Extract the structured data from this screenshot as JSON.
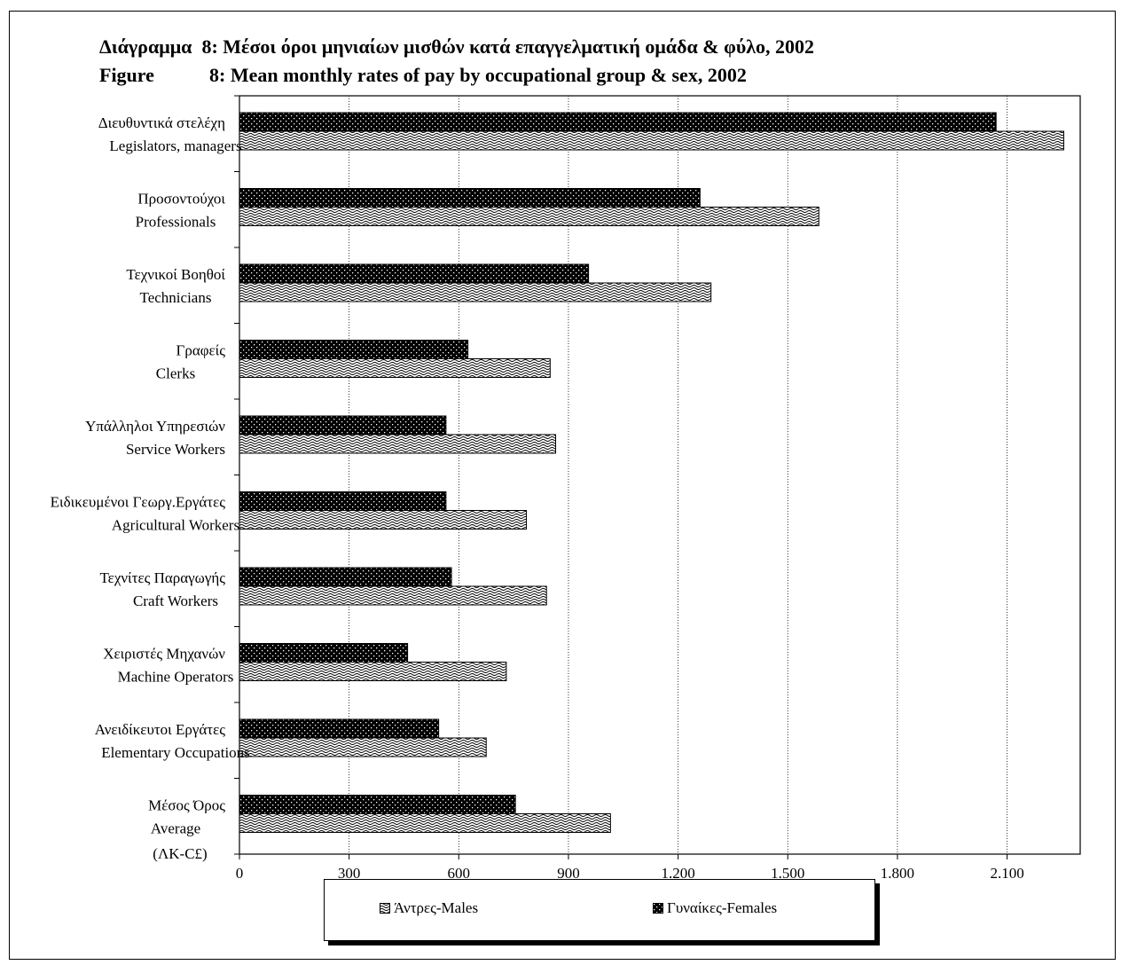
{
  "title_greek": "Διάγραμμα  8: Μέσοι όροι μηνιαίων μισθών κατά επαγγελματική ομάδα & φύλο, 2002",
  "title_english_label": "Figure",
  "title_english": "8: Mean monthly rates of pay by occupational group & sex, 2002",
  "legend": {
    "males": "Άντρες-Males",
    "females": "Γυναίκες-Females"
  },
  "chart_data": {
    "type": "bar",
    "orientation": "horizontal",
    "categories": [
      {
        "greek": "Διευθυντικά στελέχη",
        "english": "Legislators, managers"
      },
      {
        "greek": "Προσοντούχοι",
        "english": "Professionals"
      },
      {
        "greek": "Τεχνικοί Βοηθοί",
        "english": "Technicians"
      },
      {
        "greek": "Γραφείς",
        "english": "Clerks"
      },
      {
        "greek": "Υπάλληλοι Υπηρεσιών",
        "english": "Service Workers"
      },
      {
        "greek": "Ειδικευμένοι Γεωργ.Εργάτες",
        "english": "Agricultural Workers"
      },
      {
        "greek": "Τεχνίτες Παραγωγής",
        "english": "Craft Workers"
      },
      {
        "greek": "Χειριστές Μηχανών",
        "english": "Machine Operators"
      },
      {
        "greek": "Ανειδίκευτοι Εργάτες",
        "english": "Elementary Occupations"
      },
      {
        "greek": "Μέσος Όρος",
        "english": "Average"
      }
    ],
    "series": [
      {
        "name": "Γυναίκες-Females",
        "values": [
          2070,
          1260,
          955,
          625,
          565,
          565,
          580,
          460,
          545,
          755
        ]
      },
      {
        "name": "Άντρες-Males",
        "values": [
          2255,
          1585,
          1290,
          850,
          865,
          785,
          840,
          730,
          675,
          1015
        ]
      }
    ],
    "unit_label": "(ΛΚ-C£)",
    "xlim": [
      0,
      2300
    ],
    "xticks": [
      0,
      300,
      600,
      900,
      1200,
      1500,
      1800,
      2100
    ],
    "xtick_labels": [
      "0",
      "300",
      "600",
      "900",
      "1.200",
      "1.500",
      "1.800",
      "2.100"
    ],
    "grid": "vertical",
    "legend_position": "bottom"
  }
}
